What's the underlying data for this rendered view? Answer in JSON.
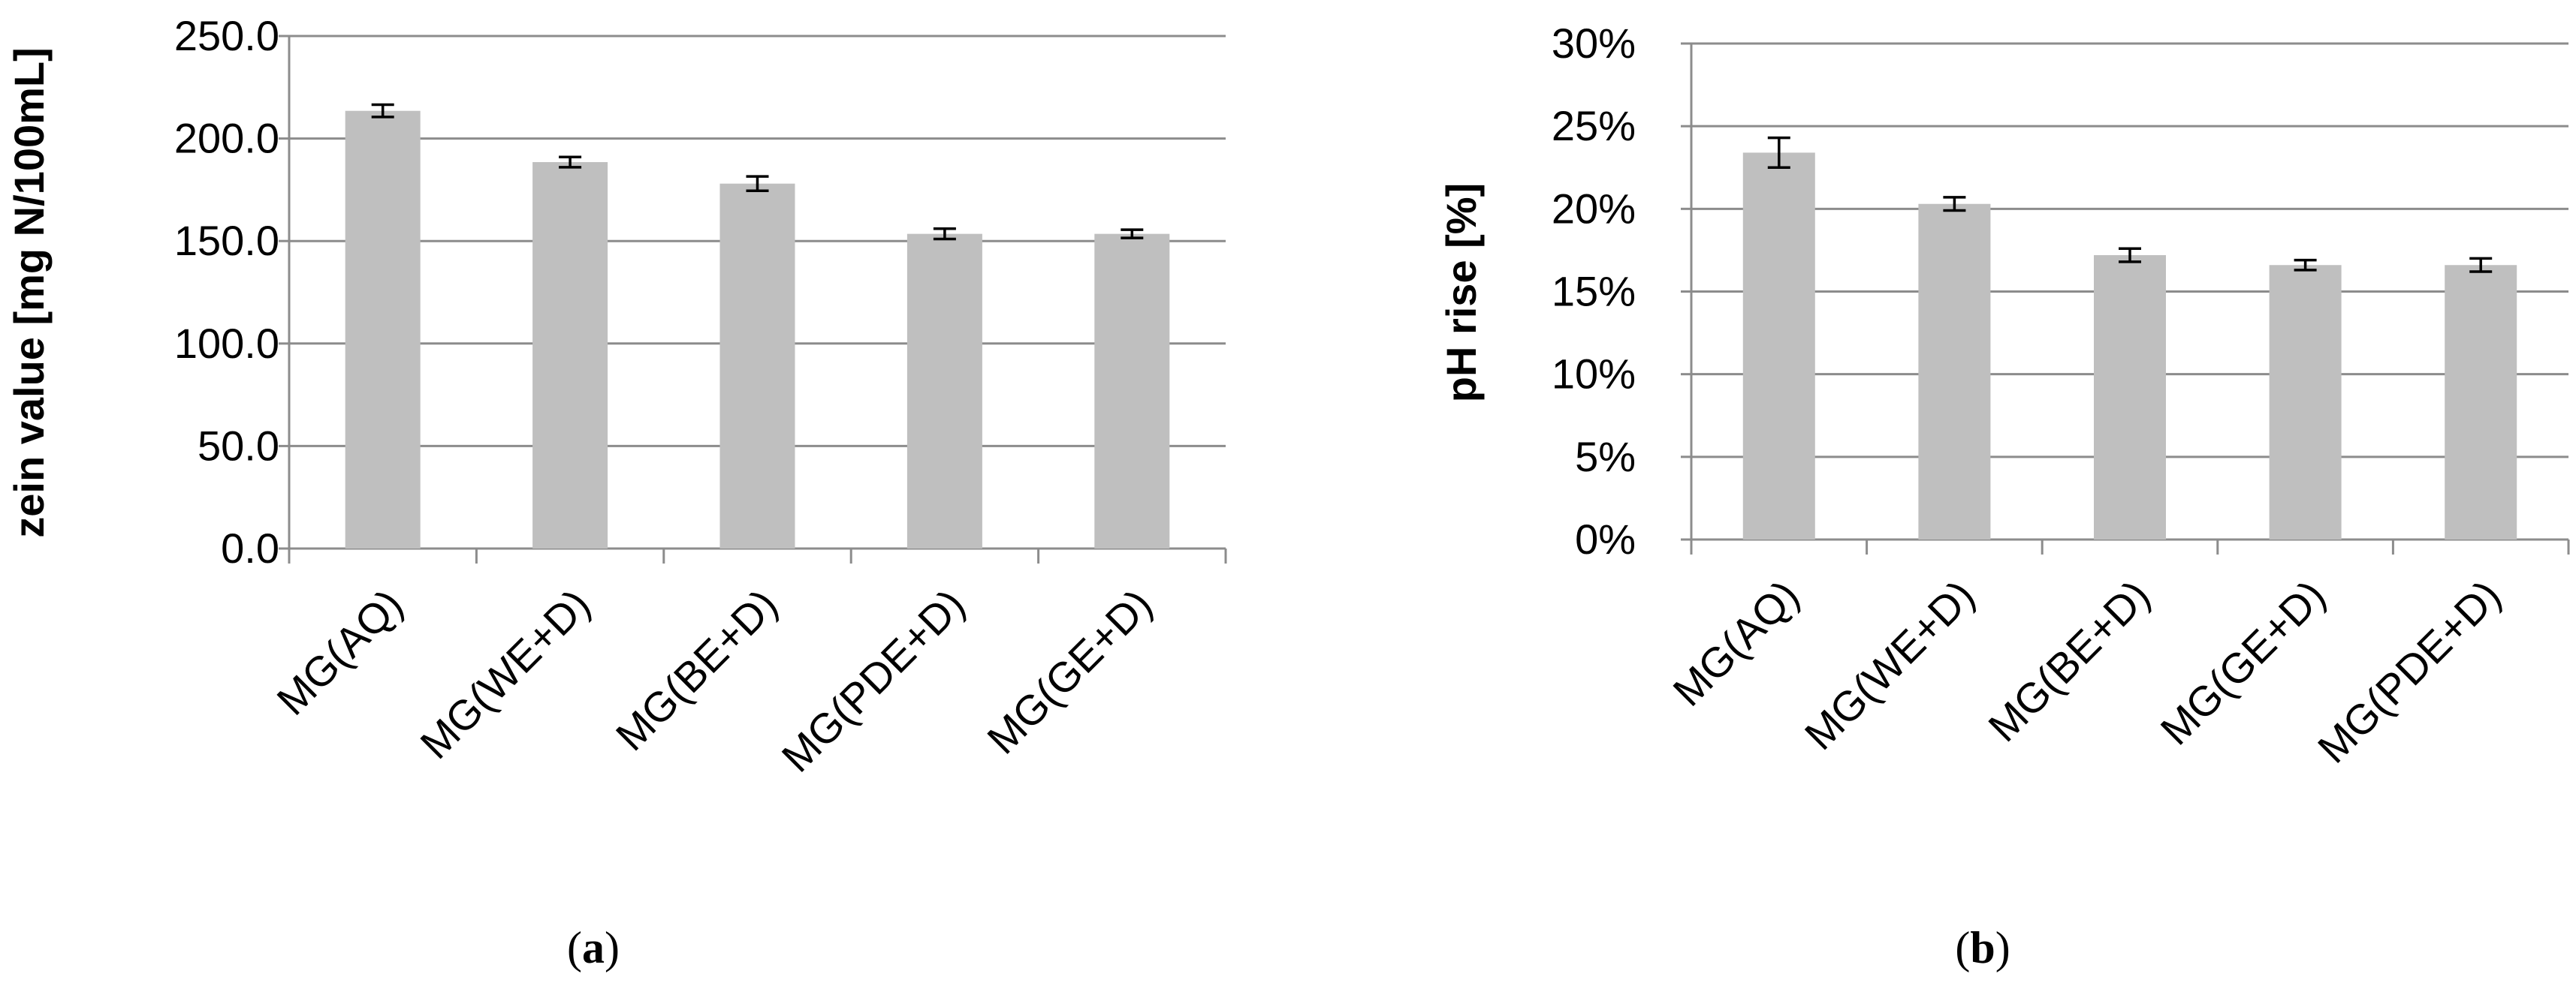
{
  "chart_data": [
    {
      "type": "bar",
      "panel_label": "a",
      "categories": [
        "MG(AQ)",
        "MG(WE+D)",
        "MG(BE+D)",
        "MG(PDE+D)",
        "MG(GE+D)"
      ],
      "values": [
        213.5,
        188.5,
        178.0,
        153.5,
        153.5
      ],
      "errors": [
        3.0,
        2.5,
        3.5,
        2.5,
        2.0
      ],
      "ylabel": "zein value [mg N/100mL]",
      "ylim": [
        0,
        250
      ],
      "yticks": [
        0,
        50,
        100,
        150,
        200,
        250
      ],
      "ytick_labels": [
        "0.0",
        "50.0",
        "100.0",
        "150.0",
        "200.0",
        "250.0"
      ],
      "grid": true,
      "color": "#bfbfbf"
    },
    {
      "type": "bar",
      "panel_label": "b",
      "categories": [
        "MG(AQ)",
        "MG(WE+D)",
        "MG(BE+D)",
        "MG(GE+D)",
        "MG(PDE+D)"
      ],
      "values": [
        23.4,
        20.3,
        17.2,
        16.6,
        16.6
      ],
      "errors": [
        0.9,
        0.4,
        0.4,
        0.3,
        0.4
      ],
      "ylabel": "pH rise [%]",
      "ylim": [
        0,
        30
      ],
      "yticks": [
        0,
        5,
        10,
        15,
        20,
        25,
        30
      ],
      "ytick_labels": [
        "0%",
        "5%",
        "10%",
        "15%",
        "20%",
        "25%",
        "30%"
      ],
      "grid": true,
      "color": "#bfbfbf"
    }
  ]
}
